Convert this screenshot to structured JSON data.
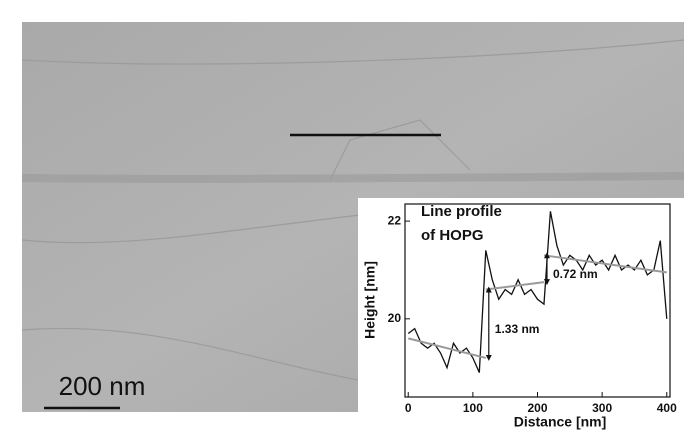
{
  "image": {
    "scale_bar_label": "200 nm"
  },
  "chart_data": {
    "type": "line",
    "title_lines": [
      "Line profile",
      "of HOPG"
    ],
    "x_label": "Distance [nm]",
    "y_label": "Height [nm]",
    "x": [
      0,
      10,
      20,
      30,
      40,
      50,
      60,
      70,
      80,
      90,
      100,
      110,
      120,
      130,
      140,
      150,
      160,
      170,
      180,
      190,
      200,
      210,
      220,
      230,
      240,
      250,
      260,
      270,
      280,
      290,
      300,
      310,
      320,
      330,
      340,
      350,
      360,
      370,
      380,
      390,
      400
    ],
    "series": [
      {
        "name": "Line profile",
        "color": "#111111",
        "values": [
          19.7,
          19.8,
          19.5,
          19.4,
          19.5,
          19.3,
          19.0,
          19.5,
          19.3,
          19.4,
          19.2,
          18.9,
          21.4,
          20.8,
          20.4,
          20.6,
          20.5,
          20.8,
          20.5,
          20.6,
          20.4,
          20.3,
          22.2,
          21.5,
          21.1,
          21.3,
          21.2,
          21.0,
          21.3,
          21.1,
          21.2,
          21.0,
          21.3,
          21.0,
          21.1,
          21.0,
          21.2,
          20.9,
          21.0,
          21.6,
          20.0
        ]
      }
    ],
    "fit_color": "#9a9a9a",
    "fit_lines": [
      {
        "x": [
          0,
          120
        ],
        "values": [
          19.6,
          19.2
        ]
      },
      {
        "x": [
          120,
          210
        ],
        "values": [
          20.6,
          20.75
        ]
      },
      {
        "x": [
          210,
          400
        ],
        "values": [
          21.3,
          20.95
        ]
      }
    ],
    "annotations": [
      {
        "text": "1.33 nm"
      },
      {
        "text": "0.72 nm"
      }
    ],
    "xlim": [
      -5,
      405
    ],
    "ylim": [
      18.4,
      22.35
    ],
    "xticks": [
      0,
      100,
      200,
      300,
      400
    ],
    "yticks": [
      20,
      22
    ]
  }
}
